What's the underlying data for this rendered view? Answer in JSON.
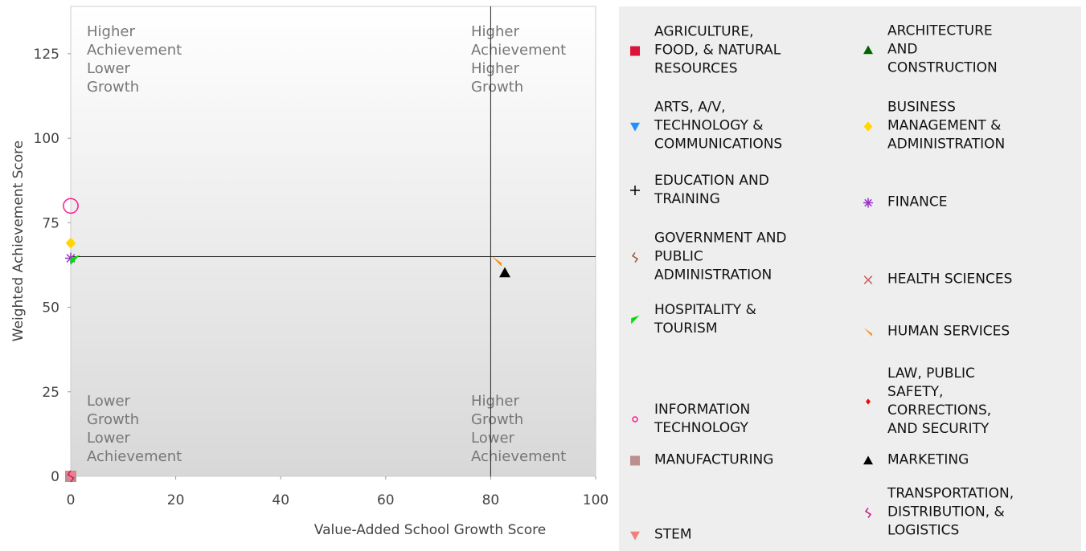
{
  "chart_data": {
    "type": "scatter",
    "xlabel": "Value-Added School Growth Score",
    "ylabel": "Weighted Achievement Score",
    "xlim": [
      0,
      100
    ],
    "ylim": [
      0,
      139
    ],
    "xticks": [
      0,
      20,
      40,
      60,
      80,
      100
    ],
    "yticks": [
      0,
      25,
      50,
      75,
      100,
      125
    ],
    "quadrant_lines": {
      "x": 80,
      "y": 65
    },
    "annotations": [
      "Higher\nAchievement\nLower\nGrowth",
      "Higher\nAchievement\nHigher\nGrowth",
      "Lower\nGrowth\nLower\nAchievement",
      "Higher\nGrowth\nLower\nAchievement"
    ],
    "series": [
      {
        "name": "AGRICULTURE,\nFOOD, & NATURAL\nRESOURCES",
        "color": "#dc143c",
        "marker": "square",
        "x": [
          0
        ],
        "values": [
          0
        ]
      },
      {
        "name": "ARCHITECTURE\nAND\nCONSTRUCTION",
        "color": "#006400",
        "marker": "triangle-up",
        "x": [
          0
        ],
        "values": [
          0
        ]
      },
      {
        "name": "ARTS, A/V,\nTECHNOLOGY &\nCOMMUNICATIONS",
        "color": "#1e90ff",
        "marker": "triangle-down",
        "x": [
          0
        ],
        "values": [
          0
        ]
      },
      {
        "name": "BUSINESS\nMANAGEMENT &\nADMINISTRATION",
        "color": "#ffd700",
        "marker": "diamond",
        "x": [
          0
        ],
        "values": [
          69
        ]
      },
      {
        "name": "EDUCATION AND\nTRAINING",
        "color": "#000000",
        "marker": "plus",
        "x": [
          0
        ],
        "values": [
          0
        ]
      },
      {
        "name": "FINANCE",
        "color": "#9932cc",
        "marker": "asterisk",
        "x": [
          0
        ],
        "values": [
          64.5
        ]
      },
      {
        "name": "GOVERNMENT AND\nPUBLIC\nADMINISTRATION",
        "color": "#a0522d",
        "marker": "squiggle",
        "x": [
          0
        ],
        "values": [
          0
        ]
      },
      {
        "name": "HEALTH SCIENCES",
        "color": "#cd5c5c",
        "marker": "cross",
        "x": [
          0
        ],
        "values": [
          0
        ]
      },
      {
        "name": "HOSPITALITY &\nTOURISM",
        "color": "#00dd00",
        "marker": "flag",
        "x": [
          0.8
        ],
        "values": [
          64
        ]
      },
      {
        "name": "HUMAN SERVICES",
        "color": "#ff8c00",
        "marker": "flag-right",
        "x": [
          81.2
        ],
        "values": [
          63.6
        ]
      },
      {
        "name": "INFORMATION\nTECHNOLOGY",
        "color": "#ff1493",
        "marker": "circle",
        "x": [
          0
        ],
        "values": [
          80
        ]
      },
      {
        "name": "LAW, PUBLIC\nSAFETY,\nCORRECTIONS,\nAND SECURITY",
        "color": "#ff0000",
        "marker": "small-diamond",
        "x": [
          0
        ],
        "values": [
          0
        ]
      },
      {
        "name": "MANUFACTURING",
        "color": "#bc8f8f",
        "marker": "square",
        "x": [
          0
        ],
        "values": [
          0
        ]
      },
      {
        "name": "MARKETING",
        "color": "#000000",
        "marker": "triangle-up",
        "x": [
          82.7
        ],
        "values": [
          60.2
        ]
      },
      {
        "name": "STEM",
        "color": "#f08080",
        "marker": "triangle-down",
        "x": [
          0
        ],
        "values": [
          0
        ]
      },
      {
        "name": "TRANSPORTATION,\nDISTRIBUTION, &\nLOGISTICS",
        "color": "#c71585",
        "marker": "squiggle",
        "x": [
          0
        ],
        "values": [
          0
        ]
      }
    ]
  }
}
